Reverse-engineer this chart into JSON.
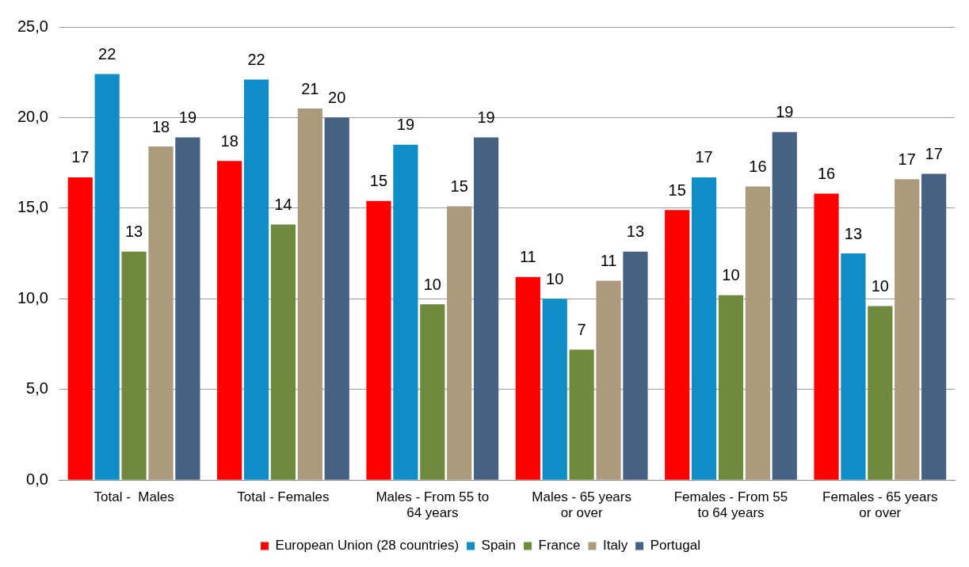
{
  "chart_data": {
    "type": "bar",
    "categories": [
      "Total -  Males",
      "Total - Females",
      "Males - From 55 to 64 years",
      "Males - 65 years or over",
      "Females - From 55 to 64 years",
      "Females - 65 years or over"
    ],
    "series": [
      {
        "name": "European Union (28 countries)",
        "color": "#ff0000",
        "values": [
          16.7,
          17.6,
          15.4,
          11.2,
          14.9,
          15.8
        ],
        "value_labels": [
          "17",
          "18",
          "15",
          "11",
          "15",
          "16"
        ]
      },
      {
        "name": "Spain",
        "color": "#0f8dc6",
        "values": [
          22.4,
          22.1,
          18.5,
          10.0,
          16.7,
          12.5
        ],
        "value_labels": [
          "22",
          "22",
          "19",
          "10",
          "17",
          "13"
        ]
      },
      {
        "name": "France",
        "color": "#6e8b3d",
        "values": [
          12.6,
          14.1,
          9.7,
          7.2,
          10.2,
          9.6
        ],
        "value_labels": [
          "13",
          "14",
          "10",
          "7",
          "10",
          "10"
        ]
      },
      {
        "name": "Italy",
        "color": "#ab9a7c",
        "values": [
          18.4,
          20.5,
          15.1,
          11.0,
          16.2,
          16.6
        ],
        "value_labels": [
          "18",
          "21",
          "15",
          "11",
          "16",
          "17"
        ]
      },
      {
        "name": "Portugal",
        "color": "#476183",
        "values": [
          18.9,
          20.0,
          18.9,
          12.6,
          19.2,
          16.9
        ],
        "value_labels": [
          "19",
          "20",
          "19",
          "13",
          "19",
          "17"
        ]
      }
    ],
    "ylim": [
      0,
      25
    ],
    "yticks": [
      {
        "value": 0,
        "label": "0,0"
      },
      {
        "value": 5,
        "label": "5,0"
      },
      {
        "value": 10,
        "label": "10,0"
      },
      {
        "value": 15,
        "label": "15,0"
      },
      {
        "value": 20,
        "label": "20,0"
      },
      {
        "value": 25,
        "label": "25,0"
      }
    ],
    "grid": "y",
    "legend": "bottom"
  }
}
